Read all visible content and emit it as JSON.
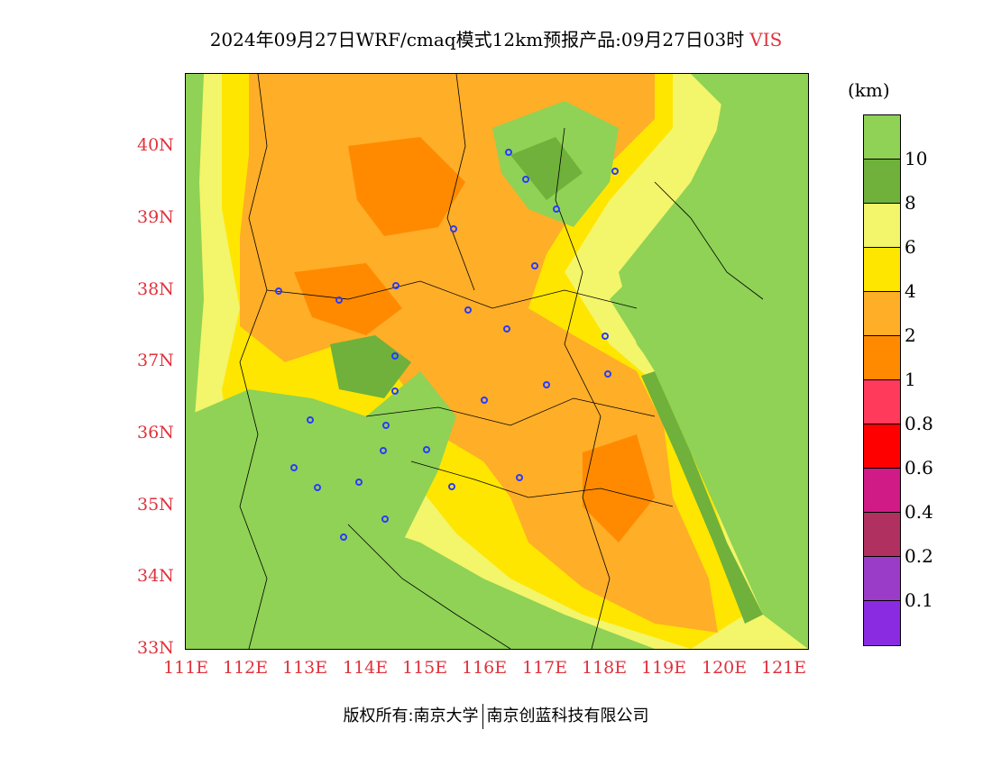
{
  "title": {
    "main": "2024年09月27日WRF/cmaq模式12km预报产品:09月27日03时",
    "variable": "VIS"
  },
  "colorbar": {
    "unit": "(km)",
    "colors": [
      "#8fd255",
      "#6fb13a",
      "#f3f56a",
      "#ffe600",
      "#ffae28",
      "#ff8a00",
      "#ff3a5a",
      "#ff0000",
      "#d01a85",
      "#b03060",
      "#9a3cc8",
      "#8a2be2"
    ],
    "labels": [
      "10",
      "8",
      "6",
      "4",
      "2",
      "1",
      "0.8",
      "0.6",
      "0.4",
      "0.2",
      "0.1"
    ]
  },
  "axes": {
    "y_labels": [
      "40N",
      "39N",
      "38N",
      "37N",
      "36N",
      "35N",
      "34N",
      "33N"
    ],
    "x_labels": [
      "111E",
      "112E",
      "113E",
      "114E",
      "115E",
      "116E",
      "117E",
      "118E",
      "119E",
      "120E",
      "121E"
    ]
  },
  "footer": {
    "left": "版权所有:南京大学",
    "right": "南京创蓝科技有限公司"
  }
}
